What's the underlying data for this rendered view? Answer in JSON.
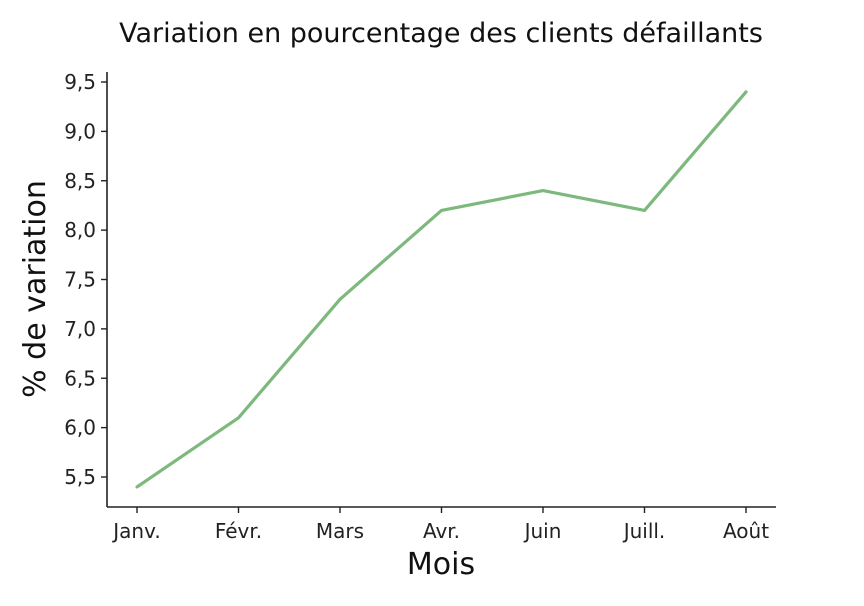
{
  "chart_data": {
    "type": "line",
    "title": "Variation en pourcentage des clients défaillants",
    "xlabel": "Mois",
    "ylabel": "% de variation",
    "categories": [
      "Janv.",
      "Févr.",
      "Mars",
      "Avr.",
      "Juin",
      "Juill.",
      "Août"
    ],
    "series": [
      {
        "values": [
          5.4,
          6.1,
          7.3,
          8.2,
          8.4,
          8.2,
          9.4
        ],
        "color": "#7db87d"
      }
    ],
    "ylim": [
      5.2,
      9.6
    ],
    "yticks": [
      5.5,
      6.0,
      6.5,
      7.0,
      7.5,
      8.0,
      8.5,
      9.0,
      9.5
    ],
    "ytick_labels": [
      "5,5",
      "6,0",
      "6,5",
      "7,0",
      "7,5",
      "8,0",
      "8,5",
      "9,0",
      "9,5"
    ],
    "grid": false,
    "legend": "none"
  }
}
